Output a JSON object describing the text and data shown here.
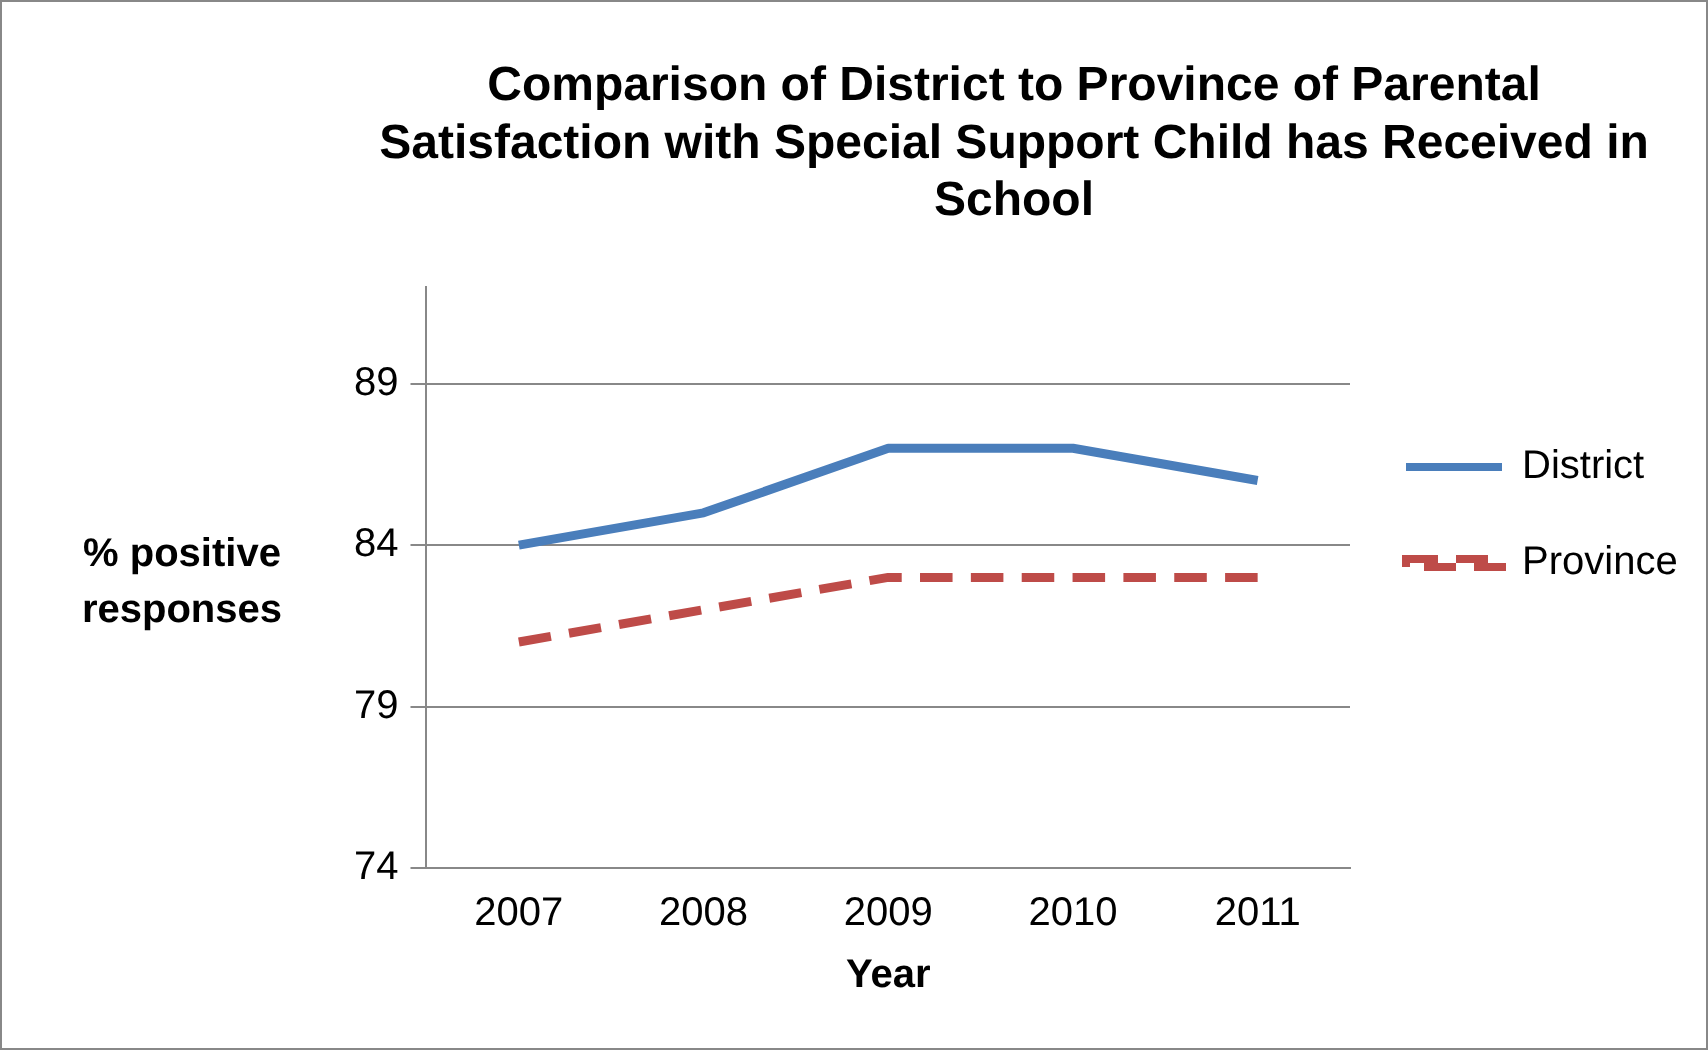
{
  "chart_data": {
    "type": "line",
    "title": "Comparison of District to Province of Parental Satisfaction with Special Support Child has Received in School",
    "xlabel": "Year",
    "ylabel": "% positive responses",
    "categories": [
      "2007",
      "2008",
      "2009",
      "2010",
      "2011"
    ],
    "series": [
      {
        "name": "District",
        "color": "#4a7ebb",
        "values": [
          84,
          85,
          87,
          87,
          86
        ],
        "line_style": "solid"
      },
      {
        "name": "Province",
        "color": "#be4b48",
        "values": [
          81,
          82,
          83,
          83,
          83
        ],
        "line_style": "dashed"
      }
    ],
    "ylim": [
      74,
      92
    ],
    "yticks": [
      74,
      79,
      84,
      89
    ],
    "grid": "y",
    "legend": "right",
    "marker": "none"
  }
}
